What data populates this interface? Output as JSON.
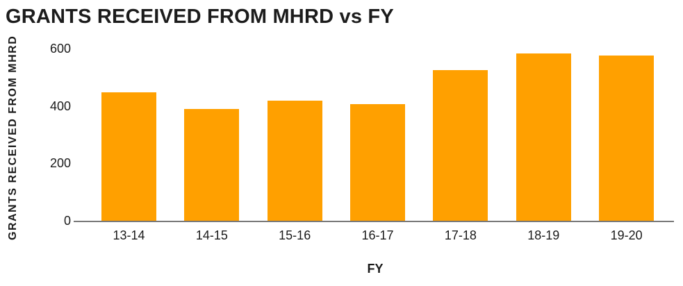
{
  "colors": {
    "bar": "#FFA000",
    "axis_line": "#777777",
    "text": "#1A1A1A"
  },
  "chart_data": {
    "type": "bar",
    "title": "GRANTS RECEIVED FROM MHRD vs FY",
    "xlabel": "FY",
    "ylabel": "GRANTS RECEIVED FROM MHRD",
    "categories": [
      "13-14",
      "14-15",
      "15-16",
      "16-17",
      "17-18",
      "18-19",
      "19-20"
    ],
    "values": [
      448,
      390,
      419,
      407,
      525,
      582,
      576
    ],
    "ylim": [
      0,
      600
    ],
    "yticks": [
      0,
      200,
      400,
      600
    ],
    "grid": false,
    "legend": "none",
    "bar_color": "#FFA000"
  }
}
